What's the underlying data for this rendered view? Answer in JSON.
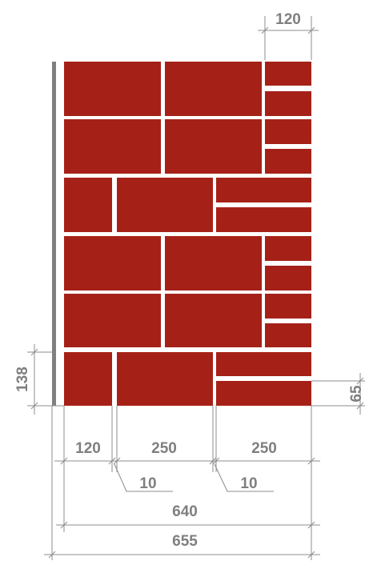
{
  "colors": {
    "brick": "#a52118",
    "dimension": "#8c8c8c",
    "text": "#7f7f7f",
    "wall_edge": "#808080"
  },
  "dimensions": {
    "top_width": "120",
    "left_height": "138",
    "right_height": "65",
    "seg1": "120",
    "seg2": "250",
    "seg3": "250",
    "gap1": "10",
    "gap2": "10",
    "total_inner": "640",
    "total_outer": "655"
  }
}
